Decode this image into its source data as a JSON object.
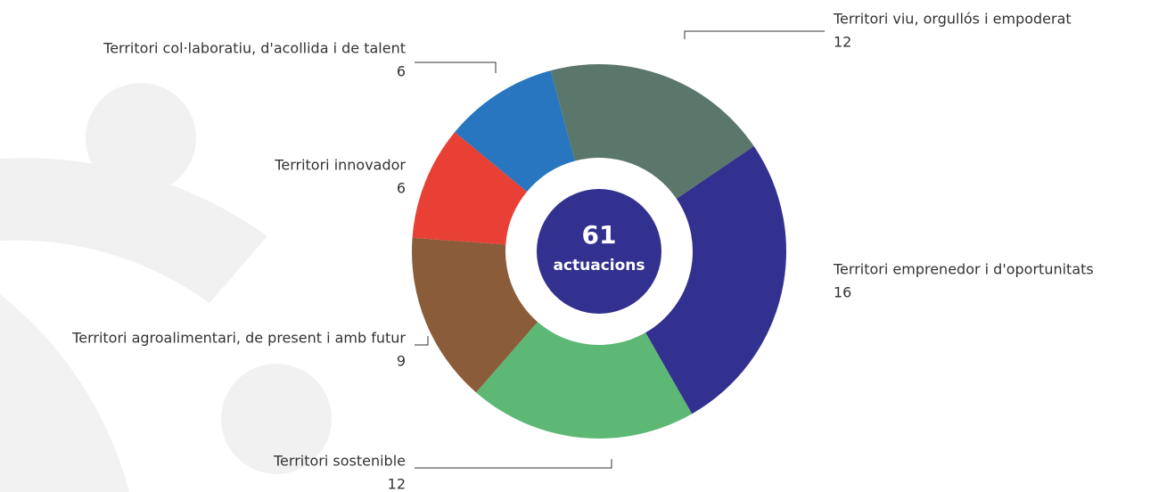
{
  "chart_data": {
    "type": "donut",
    "total": 61,
    "total_label": "actuacions",
    "categories": [
      "Territori viu, orgullós i empoderat",
      "Territori emprenedor i d'oportunitats",
      "Territori sostenible",
      "Territori agroalimentari, de present i amb futur",
      "Territori innovador",
      "Territori col·laboratiu, d'acollida i de talent"
    ],
    "values": [
      12,
      16,
      12,
      9,
      6,
      6
    ],
    "colors": [
      "#5b776c",
      "#32318f",
      "#5cb874",
      "#8b5c3a",
      "#e84034",
      "#2776bf"
    ]
  }
}
